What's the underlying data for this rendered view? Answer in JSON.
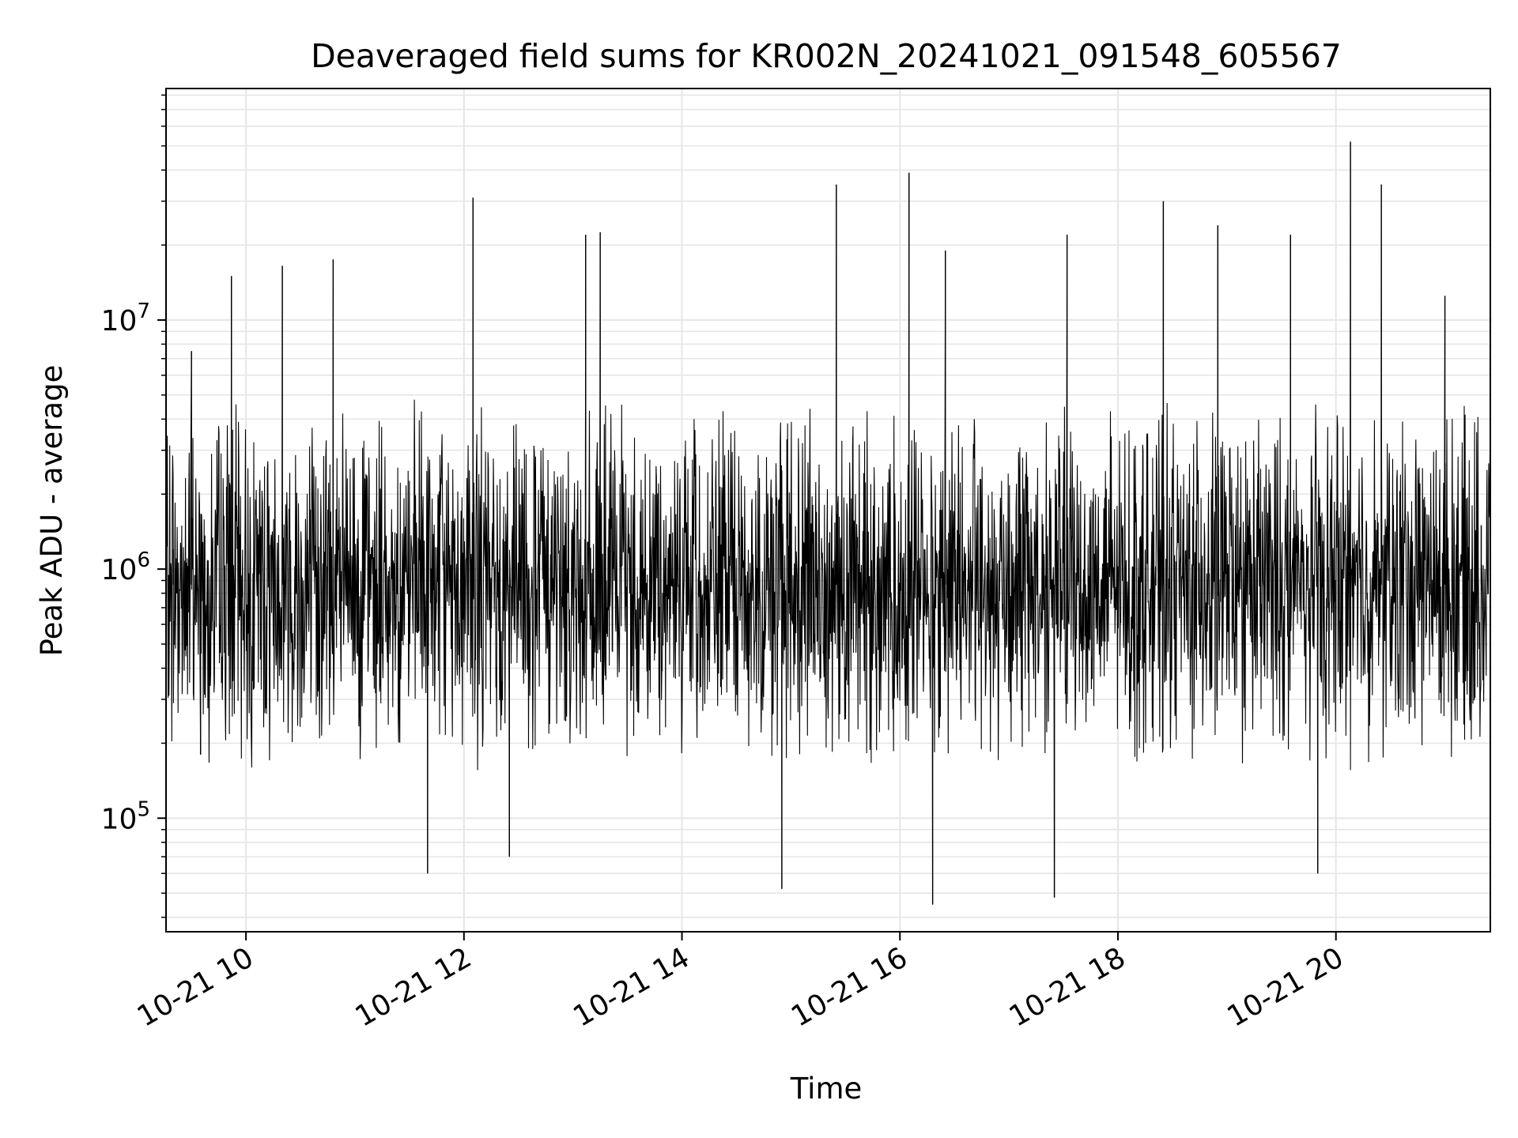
{
  "chart_data": {
    "type": "line",
    "title": "Deaveraged field sums for KR002N_20241021_091548_605567",
    "xlabel": "Time",
    "ylabel": "Peak ADU - average",
    "x_range": [
      "2024-10-21 09:16",
      "2024-10-21 21:25"
    ],
    "y_scale": "log",
    "y_range": [
      35000,
      85000000
    ],
    "x_ticks": [
      {
        "value": "2024-10-21 10:00",
        "label": "10-21 10"
      },
      {
        "value": "2024-10-21 12:00",
        "label": "10-21 12"
      },
      {
        "value": "2024-10-21 14:00",
        "label": "10-21 14"
      },
      {
        "value": "2024-10-21 16:00",
        "label": "10-21 16"
      },
      {
        "value": "2024-10-21 18:00",
        "label": "10-21 18"
      },
      {
        "value": "2024-10-21 20:00",
        "label": "10-21 20"
      }
    ],
    "y_ticks": [
      {
        "value": 100000,
        "base": "10",
        "exp": "5"
      },
      {
        "value": 1000000,
        "base": "10",
        "exp": "6"
      },
      {
        "value": 10000000,
        "base": "10",
        "exp": "7"
      }
    ],
    "grid": true,
    "line_color": "#000000",
    "grid_color": "#e6e6e6",
    "series": [
      {
        "values": [
          {
            "x": "2024-10-21 09:20",
            "y": 1200000
          },
          {
            "x": "2024-10-21 09:30",
            "y": 7500000
          },
          {
            "x": "2024-10-21 09:35",
            "y": 180000
          },
          {
            "x": "2024-10-21 09:52",
            "y": 15000000
          },
          {
            "x": "2024-10-21 10:20",
            "y": 16500000
          },
          {
            "x": "2024-10-21 10:48",
            "y": 17500000
          },
          {
            "x": "2024-10-21 11:40",
            "y": 60000
          },
          {
            "x": "2024-10-21 12:05",
            "y": 31000000
          },
          {
            "x": "2024-10-21 12:25",
            "y": 70000
          },
          {
            "x": "2024-10-21 13:07",
            "y": 22000000
          },
          {
            "x": "2024-10-21 13:15",
            "y": 22500000
          },
          {
            "x": "2024-10-21 14:55",
            "y": 52000
          },
          {
            "x": "2024-10-21 15:25",
            "y": 35000000
          },
          {
            "x": "2024-10-21 16:05",
            "y": 39000000
          },
          {
            "x": "2024-10-21 16:18",
            "y": 45000
          },
          {
            "x": "2024-10-21 16:25",
            "y": 19000000
          },
          {
            "x": "2024-10-21 17:25",
            "y": 48000
          },
          {
            "x": "2024-10-21 17:32",
            "y": 22000000
          },
          {
            "x": "2024-10-21 18:25",
            "y": 30000000
          },
          {
            "x": "2024-10-21 18:55",
            "y": 24000000
          },
          {
            "x": "2024-10-21 19:35",
            "y": 22000000
          },
          {
            "x": "2024-10-21 19:50",
            "y": 60000
          },
          {
            "x": "2024-10-21 20:08",
            "y": 52000000
          },
          {
            "x": "2024-10-21 20:25",
            "y": 35000000
          },
          {
            "x": "2024-10-21 21:00",
            "y": 12500000
          },
          {
            "x": "2024-10-21 21:20",
            "y": 1500000
          }
        ],
        "typical_range": [
          150000,
          5000000
        ]
      }
    ]
  }
}
